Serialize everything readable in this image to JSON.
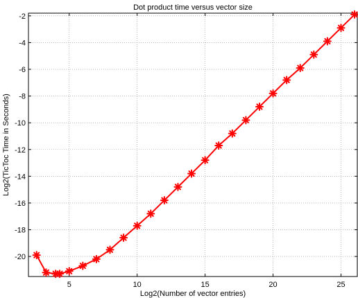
{
  "chart_data": {
    "type": "line",
    "title": "Dot product time versus vector size",
    "xlabel": "Log2(Number of vector entries)",
    "ylabel": "Log2(TicToc Time in Seconds)",
    "xlim": [
      2,
      26.2
    ],
    "ylim": [
      -21.5,
      -1.8
    ],
    "xticks": [
      5,
      10,
      15,
      20,
      25
    ],
    "yticks": [
      -20,
      -18,
      -16,
      -14,
      -12,
      -10,
      -8,
      -6,
      -4,
      -2
    ],
    "xtick_labels": [
      "5",
      "10",
      "15",
      "20",
      "25"
    ],
    "ytick_labels": [
      "-20",
      "-18",
      "-16",
      "-14",
      "-12",
      "-10",
      "-8",
      "-6",
      "-4",
      "-2"
    ],
    "grid": true,
    "series": [
      {
        "color": "#ff0000",
        "marker": "asterisk",
        "x": [
          2.6,
          3.3,
          4.0,
          4.3,
          5.0,
          6.0,
          7.0,
          8.0,
          9.0,
          10.0,
          11.0,
          12.0,
          13.0,
          14.0,
          15.0,
          16.0,
          17.0,
          18.0,
          19.0,
          20.0,
          21.0,
          22.0,
          23.0,
          24.0,
          25.0,
          26.0
        ],
        "y": [
          -19.9,
          -21.2,
          -21.3,
          -21.3,
          -21.1,
          -20.7,
          -20.2,
          -19.5,
          -18.6,
          -17.7,
          -16.8,
          -15.8,
          -14.8,
          -13.8,
          -12.8,
          -11.7,
          -10.8,
          -9.8,
          -8.8,
          -7.8,
          -6.8,
          -5.9,
          -4.9,
          -3.9,
          -2.9,
          -1.9
        ]
      }
    ]
  }
}
